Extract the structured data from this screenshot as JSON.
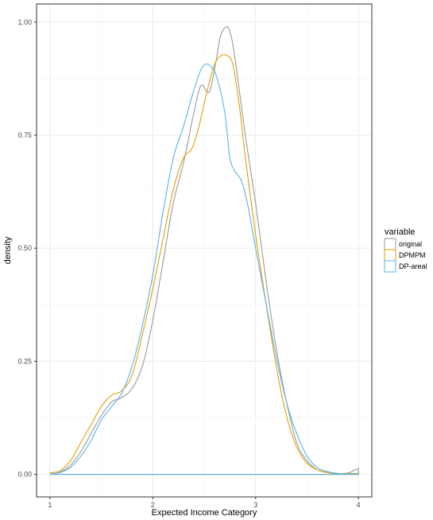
{
  "chart_data": {
    "type": "line",
    "xlabel": "Expected Income Category",
    "ylabel": "density",
    "xlim": [
      0.87,
      4.13
    ],
    "ylim": [
      -0.05,
      1.04
    ],
    "x_ticks": [
      1,
      2,
      3,
      4
    ],
    "x_tick_labels": [
      "1",
      "2",
      "3",
      "4"
    ],
    "y_ticks": [
      0.0,
      0.25,
      0.5,
      0.75,
      1.0
    ],
    "y_tick_labels": [
      "0.00",
      "0.25",
      "0.50",
      "0.75",
      "1.00"
    ],
    "grid": true,
    "legend": {
      "title": "variable",
      "placement": "right"
    },
    "series": [
      {
        "name": "original",
        "color": "#999999",
        "x": [
          1.0,
          1.1,
          1.2,
          1.3,
          1.4,
          1.5,
          1.6,
          1.7,
          1.8,
          1.9,
          2.0,
          2.1,
          2.2,
          2.3,
          2.4,
          2.47,
          2.55,
          2.62,
          2.66,
          2.72,
          2.76,
          2.8,
          2.9,
          3.0,
          3.1,
          3.2,
          3.3,
          3.4,
          3.5,
          3.6,
          3.7,
          3.8,
          3.9,
          3.95,
          4.0,
          4.0,
          1.0
        ],
        "y": [
          0.0,
          0.005,
          0.02,
          0.05,
          0.09,
          0.13,
          0.16,
          0.17,
          0.19,
          0.24,
          0.34,
          0.47,
          0.6,
          0.69,
          0.8,
          0.86,
          0.845,
          0.92,
          0.97,
          0.99,
          0.97,
          0.92,
          0.75,
          0.6,
          0.43,
          0.28,
          0.16,
          0.07,
          0.03,
          0.01,
          0.004,
          0.001,
          0.003,
          0.008,
          0.013,
          0.0,
          0.0
        ]
      },
      {
        "name": "DPMPM",
        "color": "#E69F00",
        "x": [
          1.0,
          1.1,
          1.2,
          1.3,
          1.4,
          1.5,
          1.6,
          1.7,
          1.8,
          1.9,
          2.0,
          2.1,
          2.2,
          2.3,
          2.38,
          2.45,
          2.52,
          2.6,
          2.66,
          2.72,
          2.78,
          2.85,
          2.9,
          3.0,
          3.1,
          3.2,
          3.3,
          3.4,
          3.5,
          3.6,
          3.7,
          3.8,
          3.9,
          4.0,
          4.0,
          1.0
        ],
        "y": [
          0.003,
          0.008,
          0.03,
          0.07,
          0.11,
          0.15,
          0.175,
          0.185,
          0.22,
          0.31,
          0.41,
          0.52,
          0.63,
          0.7,
          0.72,
          0.77,
          0.84,
          0.905,
          0.925,
          0.926,
          0.905,
          0.8,
          0.7,
          0.53,
          0.38,
          0.24,
          0.13,
          0.06,
          0.025,
          0.01,
          0.004,
          0.002,
          0.002,
          0.002,
          0.0,
          0.0
        ]
      },
      {
        "name": "DP-areal",
        "color": "#56B4E9",
        "x": [
          1.0,
          1.1,
          1.2,
          1.3,
          1.4,
          1.5,
          1.6,
          1.7,
          1.8,
          1.9,
          2.0,
          2.1,
          2.2,
          2.3,
          2.4,
          2.48,
          2.55,
          2.62,
          2.7,
          2.75,
          2.8,
          2.86,
          2.92,
          3.0,
          3.1,
          3.2,
          3.3,
          3.4,
          3.5,
          3.6,
          3.7,
          3.8,
          3.9,
          4.0,
          4.0,
          1.0
        ],
        "y": [
          0.0,
          0.004,
          0.015,
          0.04,
          0.075,
          0.12,
          0.15,
          0.18,
          0.24,
          0.33,
          0.44,
          0.58,
          0.7,
          0.77,
          0.85,
          0.9,
          0.905,
          0.88,
          0.8,
          0.7,
          0.67,
          0.65,
          0.6,
          0.5,
          0.38,
          0.26,
          0.16,
          0.09,
          0.04,
          0.015,
          0.006,
          0.002,
          0.001,
          0.001,
          0.0,
          0.0
        ]
      }
    ]
  }
}
